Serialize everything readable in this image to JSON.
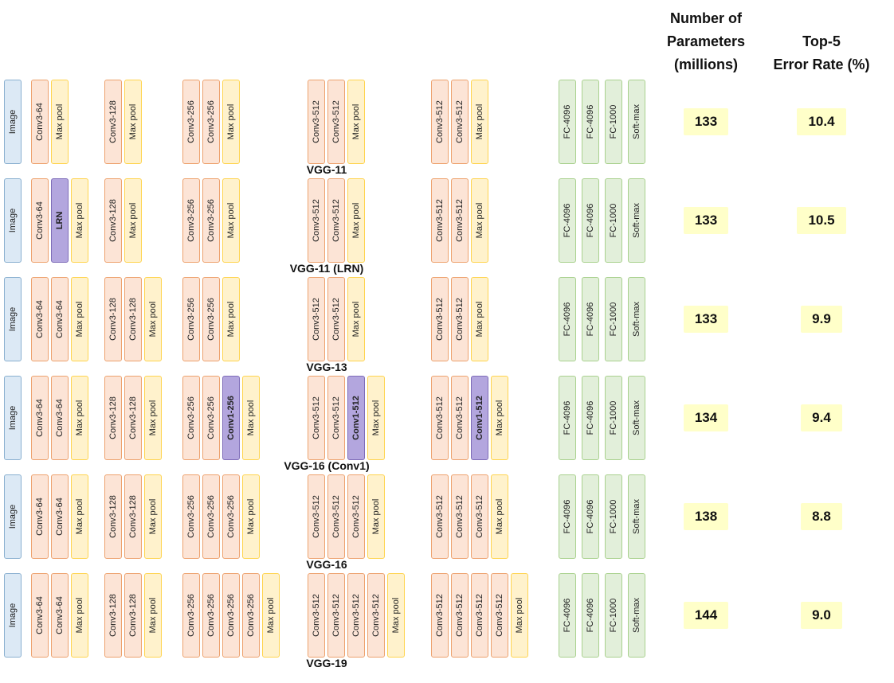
{
  "header": {
    "params_title": "Number of\nParameters\n(millions)",
    "error_title": "Top-5\nError Rate (%)"
  },
  "colors": {
    "image_fill": "#dce9f5",
    "conv_fill": "#fce4d6",
    "pool_fill": "#fff2cc",
    "special_fill": "#b3a6de",
    "fc_fill": "#e2efda",
    "value_highlight": "#ffffc9"
  },
  "rows": [
    {
      "label": "VGG-11",
      "params": "133",
      "error": "10.4",
      "stages": [
        {
          "id": "input",
          "blocks": [
            {
              "label": "Image",
              "type": "image"
            }
          ]
        },
        {
          "id": "conv64",
          "blocks": [
            {
              "label": "Conv3-64",
              "type": "conv"
            },
            {
              "label": "Max pool",
              "type": "pool"
            }
          ]
        },
        {
          "id": "conv128",
          "blocks": [
            {
              "label": "Conv3-128",
              "type": "conv"
            },
            {
              "label": "Max pool",
              "type": "pool"
            }
          ]
        },
        {
          "id": "conv256",
          "blocks": [
            {
              "label": "Conv3-256",
              "type": "conv"
            },
            {
              "label": "Conv3-256",
              "type": "conv"
            },
            {
              "label": "Max pool",
              "type": "pool"
            }
          ]
        },
        {
          "id": "conv512a",
          "blocks": [
            {
              "label": "Conv3-512",
              "type": "conv"
            },
            {
              "label": "Conv3-512",
              "type": "conv"
            },
            {
              "label": "Max pool",
              "type": "pool"
            }
          ]
        },
        {
          "id": "conv512b",
          "blocks": [
            {
              "label": "Conv3-512",
              "type": "conv"
            },
            {
              "label": "Conv3-512",
              "type": "conv"
            },
            {
              "label": "Max pool",
              "type": "pool"
            }
          ]
        },
        {
          "id": "classifier",
          "blocks": [
            {
              "label": "FC-4096",
              "type": "fc"
            },
            {
              "label": "FC-4096",
              "type": "fc"
            },
            {
              "label": "FC-1000",
              "type": "fc"
            },
            {
              "label": "Soft-max",
              "type": "fc"
            }
          ]
        }
      ]
    },
    {
      "label": "VGG-11 (LRN)",
      "params": "133",
      "error": "10.5",
      "stages": [
        {
          "id": "input",
          "blocks": [
            {
              "label": "Image",
              "type": "image"
            }
          ]
        },
        {
          "id": "conv64",
          "blocks": [
            {
              "label": "Conv3-64",
              "type": "conv"
            },
            {
              "label": "LRN",
              "type": "special"
            },
            {
              "label": "Max pool",
              "type": "pool"
            }
          ]
        },
        {
          "id": "conv128",
          "blocks": [
            {
              "label": "Conv3-128",
              "type": "conv"
            },
            {
              "label": "Max pool",
              "type": "pool"
            }
          ]
        },
        {
          "id": "conv256",
          "blocks": [
            {
              "label": "Conv3-256",
              "type": "conv"
            },
            {
              "label": "Conv3-256",
              "type": "conv"
            },
            {
              "label": "Max pool",
              "type": "pool"
            }
          ]
        },
        {
          "id": "conv512a",
          "blocks": [
            {
              "label": "Conv3-512",
              "type": "conv"
            },
            {
              "label": "Conv3-512",
              "type": "conv"
            },
            {
              "label": "Max pool",
              "type": "pool"
            }
          ]
        },
        {
          "id": "conv512b",
          "blocks": [
            {
              "label": "Conv3-512",
              "type": "conv"
            },
            {
              "label": "Conv3-512",
              "type": "conv"
            },
            {
              "label": "Max pool",
              "type": "pool"
            }
          ]
        },
        {
          "id": "classifier",
          "blocks": [
            {
              "label": "FC-4096",
              "type": "fc"
            },
            {
              "label": "FC-4096",
              "type": "fc"
            },
            {
              "label": "FC-1000",
              "type": "fc"
            },
            {
              "label": "Soft-max",
              "type": "fc"
            }
          ]
        }
      ]
    },
    {
      "label": "VGG-13",
      "params": "133",
      "error": "9.9",
      "stages": [
        {
          "id": "input",
          "blocks": [
            {
              "label": "Image",
              "type": "image"
            }
          ]
        },
        {
          "id": "conv64",
          "blocks": [
            {
              "label": "Conv3-64",
              "type": "conv"
            },
            {
              "label": "Conv3-64",
              "type": "conv"
            },
            {
              "label": "Max pool",
              "type": "pool"
            }
          ]
        },
        {
          "id": "conv128",
          "blocks": [
            {
              "label": "Conv3-128",
              "type": "conv"
            },
            {
              "label": "Conv3-128",
              "type": "conv"
            },
            {
              "label": "Max pool",
              "type": "pool"
            }
          ]
        },
        {
          "id": "conv256",
          "blocks": [
            {
              "label": "Conv3-256",
              "type": "conv"
            },
            {
              "label": "Conv3-256",
              "type": "conv"
            },
            {
              "label": "Max pool",
              "type": "pool"
            }
          ]
        },
        {
          "id": "conv512a",
          "blocks": [
            {
              "label": "Conv3-512",
              "type": "conv"
            },
            {
              "label": "Conv3-512",
              "type": "conv"
            },
            {
              "label": "Max pool",
              "type": "pool"
            }
          ]
        },
        {
          "id": "conv512b",
          "blocks": [
            {
              "label": "Conv3-512",
              "type": "conv"
            },
            {
              "label": "Conv3-512",
              "type": "conv"
            },
            {
              "label": "Max pool",
              "type": "pool"
            }
          ]
        },
        {
          "id": "classifier",
          "blocks": [
            {
              "label": "FC-4096",
              "type": "fc"
            },
            {
              "label": "FC-4096",
              "type": "fc"
            },
            {
              "label": "FC-1000",
              "type": "fc"
            },
            {
              "label": "Soft-max",
              "type": "fc"
            }
          ]
        }
      ]
    },
    {
      "label": "VGG-16 (Conv1)",
      "params": "134",
      "error": "9.4",
      "stages": [
        {
          "id": "input",
          "blocks": [
            {
              "label": "Image",
              "type": "image"
            }
          ]
        },
        {
          "id": "conv64",
          "blocks": [
            {
              "label": "Conv3-64",
              "type": "conv"
            },
            {
              "label": "Conv3-64",
              "type": "conv"
            },
            {
              "label": "Max pool",
              "type": "pool"
            }
          ]
        },
        {
          "id": "conv128",
          "blocks": [
            {
              "label": "Conv3-128",
              "type": "conv"
            },
            {
              "label": "Conv3-128",
              "type": "conv"
            },
            {
              "label": "Max pool",
              "type": "pool"
            }
          ]
        },
        {
          "id": "conv256",
          "blocks": [
            {
              "label": "Conv3-256",
              "type": "conv"
            },
            {
              "label": "Conv3-256",
              "type": "conv"
            },
            {
              "label": "Conv1-256",
              "type": "special"
            },
            {
              "label": "Max pool",
              "type": "pool"
            }
          ]
        },
        {
          "id": "conv512a",
          "blocks": [
            {
              "label": "Conv3-512",
              "type": "conv"
            },
            {
              "label": "Conv3-512",
              "type": "conv"
            },
            {
              "label": "Conv1-512",
              "type": "special"
            },
            {
              "label": "Max pool",
              "type": "pool"
            }
          ]
        },
        {
          "id": "conv512b",
          "blocks": [
            {
              "label": "Conv3-512",
              "type": "conv"
            },
            {
              "label": "Conv3-512",
              "type": "conv"
            },
            {
              "label": "Conv1-512",
              "type": "special"
            },
            {
              "label": "Max pool",
              "type": "pool"
            }
          ]
        },
        {
          "id": "classifier",
          "blocks": [
            {
              "label": "FC-4096",
              "type": "fc"
            },
            {
              "label": "FC-4096",
              "type": "fc"
            },
            {
              "label": "FC-1000",
              "type": "fc"
            },
            {
              "label": "Soft-max",
              "type": "fc"
            }
          ]
        }
      ]
    },
    {
      "label": "VGG-16",
      "params": "138",
      "error": "8.8",
      "stages": [
        {
          "id": "input",
          "blocks": [
            {
              "label": "Image",
              "type": "image"
            }
          ]
        },
        {
          "id": "conv64",
          "blocks": [
            {
              "label": "Conv3-64",
              "type": "conv"
            },
            {
              "label": "Conv3-64",
              "type": "conv"
            },
            {
              "label": "Max pool",
              "type": "pool"
            }
          ]
        },
        {
          "id": "conv128",
          "blocks": [
            {
              "label": "Conv3-128",
              "type": "conv"
            },
            {
              "label": "Conv3-128",
              "type": "conv"
            },
            {
              "label": "Max pool",
              "type": "pool"
            }
          ]
        },
        {
          "id": "conv256",
          "blocks": [
            {
              "label": "Conv3-256",
              "type": "conv"
            },
            {
              "label": "Conv3-256",
              "type": "conv"
            },
            {
              "label": "Conv3-256",
              "type": "conv"
            },
            {
              "label": "Max pool",
              "type": "pool"
            }
          ]
        },
        {
          "id": "conv512a",
          "blocks": [
            {
              "label": "Conv3-512",
              "type": "conv"
            },
            {
              "label": "Conv3-512",
              "type": "conv"
            },
            {
              "label": "Conv3-512",
              "type": "conv"
            },
            {
              "label": "Max pool",
              "type": "pool"
            }
          ]
        },
        {
          "id": "conv512b",
          "blocks": [
            {
              "label": "Conv3-512",
              "type": "conv"
            },
            {
              "label": "Conv3-512",
              "type": "conv"
            },
            {
              "label": "Conv3-512",
              "type": "conv"
            },
            {
              "label": "Max pool",
              "type": "pool"
            }
          ]
        },
        {
          "id": "classifier",
          "blocks": [
            {
              "label": "FC-4096",
              "type": "fc"
            },
            {
              "label": "FC-4096",
              "type": "fc"
            },
            {
              "label": "FC-1000",
              "type": "fc"
            },
            {
              "label": "Soft-max",
              "type": "fc"
            }
          ]
        }
      ]
    },
    {
      "label": "VGG-19",
      "params": "144",
      "error": "9.0",
      "stages": [
        {
          "id": "input",
          "blocks": [
            {
              "label": "Image",
              "type": "image"
            }
          ]
        },
        {
          "id": "conv64",
          "blocks": [
            {
              "label": "Conv3-64",
              "type": "conv"
            },
            {
              "label": "Conv3-64",
              "type": "conv"
            },
            {
              "label": "Max pool",
              "type": "pool"
            }
          ]
        },
        {
          "id": "conv128",
          "blocks": [
            {
              "label": "Conv3-128",
              "type": "conv"
            },
            {
              "label": "Conv3-128",
              "type": "conv"
            },
            {
              "label": "Max pool",
              "type": "pool"
            }
          ]
        },
        {
          "id": "conv256",
          "blocks": [
            {
              "label": "Conv3-256",
              "type": "conv"
            },
            {
              "label": "Conv3-256",
              "type": "conv"
            },
            {
              "label": "Conv3-256",
              "type": "conv"
            },
            {
              "label": "Conv3-256",
              "type": "conv"
            },
            {
              "label": "Max pool",
              "type": "pool"
            }
          ]
        },
        {
          "id": "conv512a",
          "blocks": [
            {
              "label": "Conv3-512",
              "type": "conv"
            },
            {
              "label": "Conv3-512",
              "type": "conv"
            },
            {
              "label": "Conv3-512",
              "type": "conv"
            },
            {
              "label": "Conv3-512",
              "type": "conv"
            },
            {
              "label": "Max pool",
              "type": "pool"
            }
          ]
        },
        {
          "id": "conv512b",
          "blocks": [
            {
              "label": "Conv3-512",
              "type": "conv"
            },
            {
              "label": "Conv3-512",
              "type": "conv"
            },
            {
              "label": "Conv3-512",
              "type": "conv"
            },
            {
              "label": "Conv3-512",
              "type": "conv"
            },
            {
              "label": "Max pool",
              "type": "pool"
            }
          ]
        },
        {
          "id": "classifier",
          "blocks": [
            {
              "label": "FC-4096",
              "type": "fc"
            },
            {
              "label": "FC-4096",
              "type": "fc"
            },
            {
              "label": "FC-1000",
              "type": "fc"
            },
            {
              "label": "Soft-max",
              "type": "fc"
            }
          ]
        }
      ]
    }
  ]
}
